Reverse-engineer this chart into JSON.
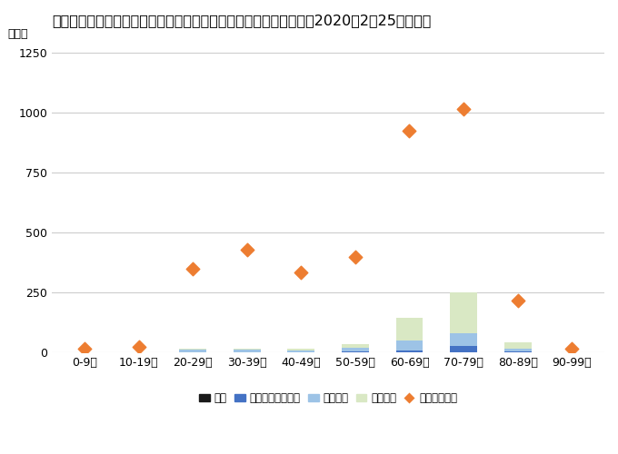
{
  "title": "ダイヤモンド・プリンセス号での新型コロナウイルス感染確認数（2020年2月25日時点）",
  "ylabel": "（人）",
  "categories": [
    "0-9歳",
    "10-19歳",
    "20-29歳",
    "30-39歳",
    "40-49歳",
    "50-59歳",
    "60-69歳",
    "70-79歳",
    "80-89歳",
    "90-99歳"
  ],
  "deaths": [
    0,
    0,
    0,
    0,
    0,
    0,
    0,
    1,
    1,
    0
  ],
  "severe": [
    0,
    0,
    1,
    2,
    1,
    3,
    10,
    25,
    5,
    0
  ],
  "symptomatic": [
    1,
    1,
    10,
    10,
    8,
    15,
    40,
    55,
    10,
    1
  ],
  "asymptomatic": [
    0,
    0,
    5,
    5,
    5,
    15,
    95,
    170,
    25,
    0
  ],
  "passengers": [
    16,
    23,
    347,
    428,
    334,
    398,
    923,
    1015,
    216,
    15
  ],
  "ylim": [
    0,
    1250
  ],
  "yticks": [
    0,
    250,
    500,
    750,
    1000,
    1250
  ],
  "color_deaths": "#1a1a1a",
  "color_severe": "#4472c4",
  "color_symptomatic": "#9dc3e6",
  "color_asymptomatic": "#d9e8c4",
  "color_passengers": "#ed7d31",
  "legend_labels": [
    "死者",
    "入院患者（重度）",
    "有症状者",
    "無症状者",
    "乗客・乗員数"
  ],
  "title_fontsize": 11.5,
  "axis_fontsize": 9,
  "legend_fontsize": 8.5,
  "background_color": "#ffffff",
  "grid_color": "#cccccc"
}
